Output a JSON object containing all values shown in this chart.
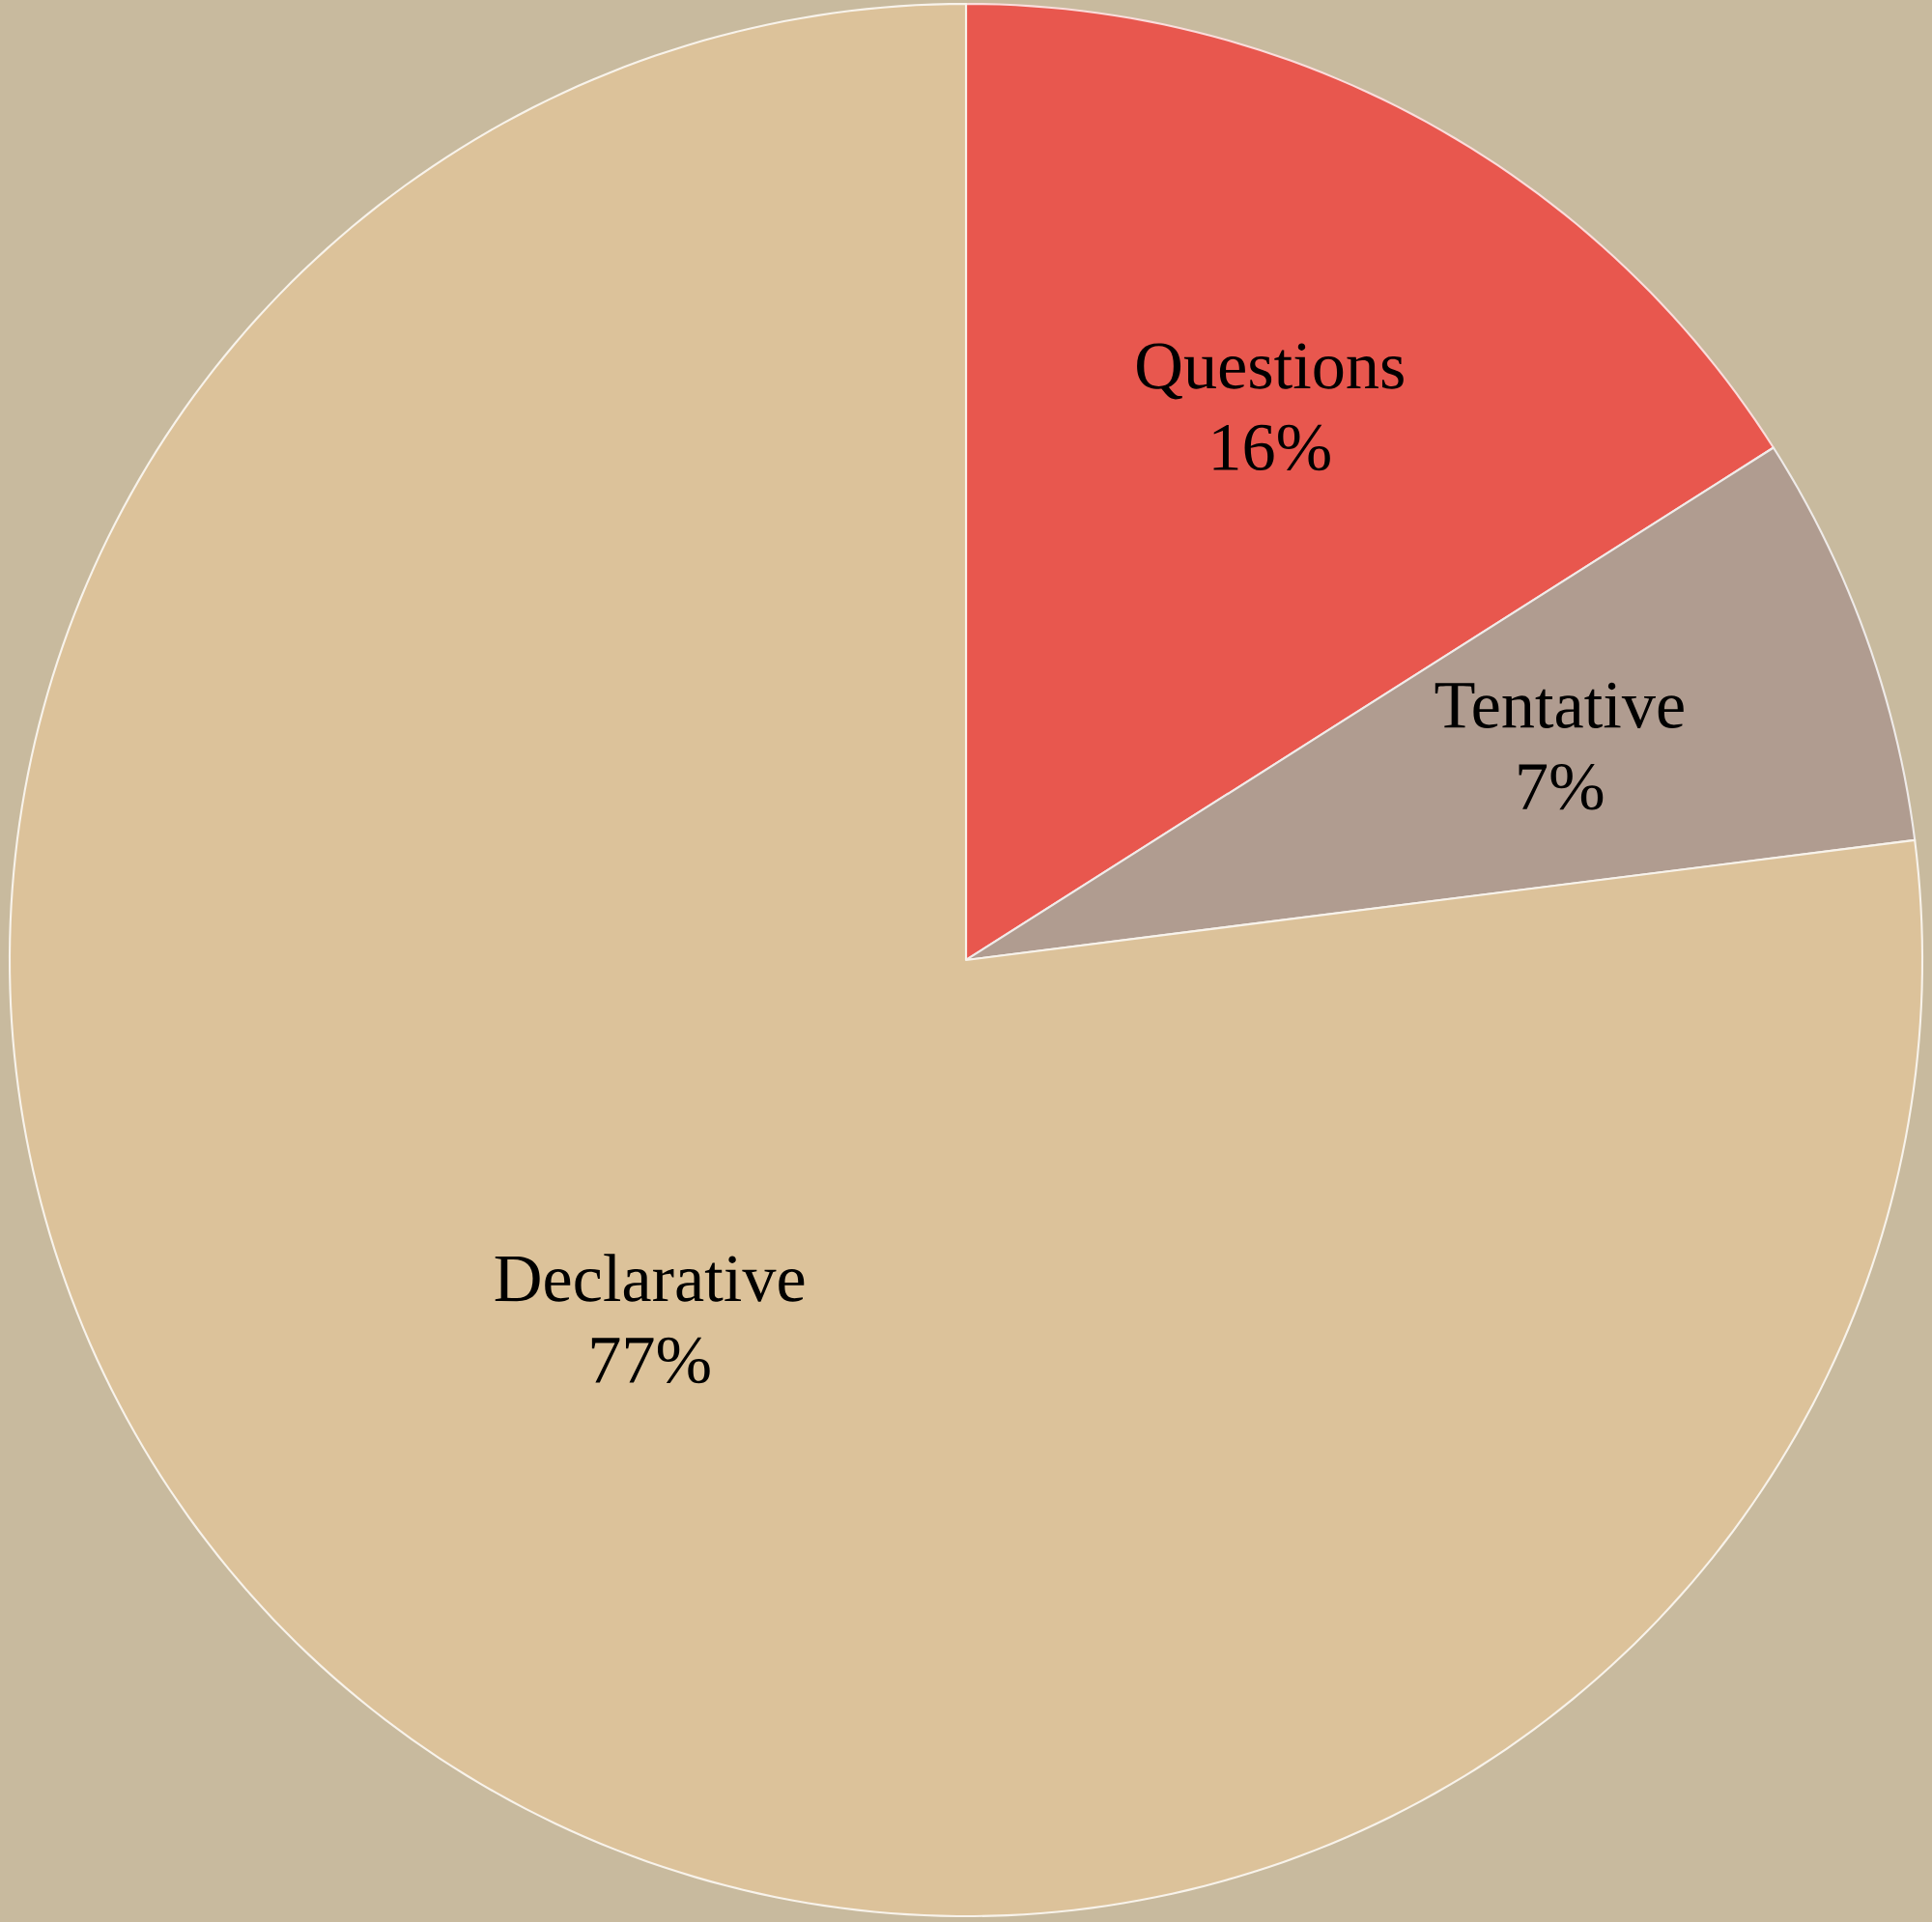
{
  "chart_data": {
    "type": "pie",
    "categories": [
      "Questions",
      "Tentative",
      "Declarative"
    ],
    "values": [
      16,
      7,
      77
    ],
    "value_labels": [
      "16%",
      "7%",
      "77%"
    ],
    "colors": [
      "#e8574e",
      "#b09c90",
      "#dcc29a"
    ]
  }
}
